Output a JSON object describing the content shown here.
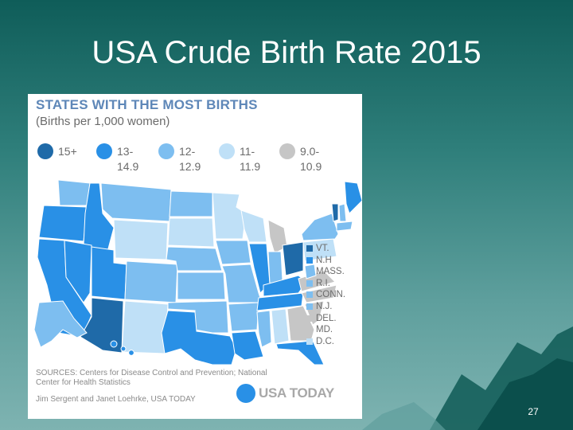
{
  "slide": {
    "title": "USA Crude Birth Rate 2015",
    "page_number": "27"
  },
  "infographic": {
    "title": "STATES WITH THE MOST BIRTHS",
    "subtitle": "(Births per 1,000 women)",
    "legend": [
      {
        "label": "15+",
        "color": "#1f6aa8"
      },
      {
        "label": "13-\n14.9",
        "color": "#2990e6"
      },
      {
        "label": "12-\n12.9",
        "color": "#7dbef0"
      },
      {
        "label": "11-\n11.9",
        "color": "#bfe0f7"
      },
      {
        "label": "9.0-\n10.9",
        "color": "#c6c6c6"
      }
    ],
    "northeast": [
      {
        "label": "VT.",
        "color": "#1f6aa8"
      },
      {
        "label": "N.H",
        "color": "#2990e6"
      },
      {
        "label": "MASS.",
        "color": "#7dbef0"
      },
      {
        "label": "R.I.",
        "color": "#7dbef0"
      },
      {
        "label": "CONN.",
        "color": "#7dbef0"
      },
      {
        "label": "N.J.",
        "color": "#7dbef0"
      },
      {
        "label": "DEL.",
        "color": "#c6c6c6"
      },
      {
        "label": "MD.",
        "color": "#c6c6c6"
      },
      {
        "label": "D.C.",
        "color": "#bfe0f7"
      }
    ],
    "sources": "SOURCES: Centers for Disease Control and Prevention; National Center for Health Statistics",
    "credit": "Jim Sergent and Janet Loehrke, USA TODAY",
    "logo_text": "USA TODAY",
    "logo_color": "#2990e6"
  }
}
